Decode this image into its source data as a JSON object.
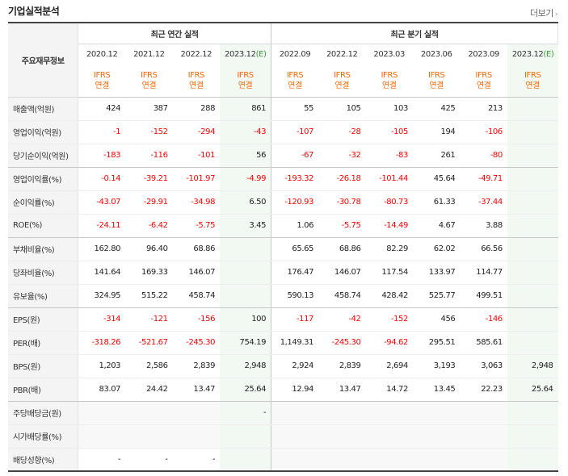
{
  "header": {
    "title": "기업실적분석",
    "more_label": "더보기",
    "more_chevron": "›"
  },
  "table": {
    "metric_header": "주요재무정보",
    "annual_group": "최근 연간 실적",
    "quarter_group": "최근 분기 실적",
    "periods": [
      {
        "label": "2020.12",
        "est": "",
        "acct1": "IFRS",
        "acct2": "연결"
      },
      {
        "label": "2021.12",
        "est": "",
        "acct1": "IFRS",
        "acct2": "연결"
      },
      {
        "label": "2022.12",
        "est": "",
        "acct1": "IFRS",
        "acct2": "연결"
      },
      {
        "label": "2023.12",
        "est": "(E)",
        "acct1": "IFRS",
        "acct2": "연결"
      },
      {
        "label": "2022.09",
        "est": "",
        "acct1": "IFRS",
        "acct2": "연결"
      },
      {
        "label": "2022.12",
        "est": "",
        "acct1": "IFRS",
        "acct2": "연결"
      },
      {
        "label": "2023.03",
        "est": "",
        "acct1": "IFRS",
        "acct2": "연결"
      },
      {
        "label": "2023.06",
        "est": "",
        "acct1": "IFRS",
        "acct2": "연결"
      },
      {
        "label": "2023.09",
        "est": "",
        "acct1": "IFRS",
        "acct2": "연결"
      },
      {
        "label": "2023.12",
        "est": "(E)",
        "acct1": "IFRS",
        "acct2": "연결"
      }
    ],
    "rows": [
      {
        "name": "매출액(억원)",
        "values": [
          "424",
          "387",
          "288",
          "861",
          "55",
          "105",
          "103",
          "425",
          "213",
          ""
        ],
        "group_end": false
      },
      {
        "name": "영업이익(억원)",
        "values": [
          "-1",
          "-152",
          "-294",
          "-43",
          "-107",
          "-28",
          "-105",
          "194",
          "-106",
          ""
        ],
        "group_end": false
      },
      {
        "name": "당기순이익(억원)",
        "values": [
          "-183",
          "-116",
          "-101",
          "56",
          "-67",
          "-32",
          "-83",
          "261",
          "-80",
          ""
        ],
        "group_end": true
      },
      {
        "name": "영업이익률(%)",
        "values": [
          "-0.14",
          "-39.21",
          "-101.97",
          "-4.99",
          "-193.32",
          "-26.18",
          "-101.44",
          "45.64",
          "-49.71",
          ""
        ],
        "group_end": false
      },
      {
        "name": "순이익률(%)",
        "values": [
          "-43.07",
          "-29.91",
          "-34.98",
          "6.50",
          "-120.93",
          "-30.78",
          "-80.73",
          "61.33",
          "-37.44",
          ""
        ],
        "group_end": false
      },
      {
        "name": "ROE(%)",
        "values": [
          "-24.11",
          "-6.42",
          "-5.75",
          "3.45",
          "1.06",
          "-5.75",
          "-14.49",
          "4.67",
          "3.88",
          ""
        ],
        "group_end": true
      },
      {
        "name": "부채비율(%)",
        "values": [
          "162.80",
          "96.40",
          "68.86",
          "",
          "65.65",
          "68.86",
          "82.29",
          "62.02",
          "66.56",
          ""
        ],
        "group_end": false
      },
      {
        "name": "당좌비율(%)",
        "values": [
          "141.64",
          "169.33",
          "146.07",
          "",
          "176.47",
          "146.07",
          "117.54",
          "133.97",
          "114.77",
          ""
        ],
        "group_end": false
      },
      {
        "name": "유보율(%)",
        "values": [
          "324.95",
          "515.22",
          "458.74",
          "",
          "590.13",
          "458.74",
          "428.42",
          "525.77",
          "499.51",
          ""
        ],
        "group_end": true
      },
      {
        "name": "EPS(원)",
        "values": [
          "-314",
          "-121",
          "-156",
          "100",
          "-117",
          "-42",
          "-152",
          "456",
          "-146",
          ""
        ],
        "group_end": false
      },
      {
        "name": "PER(배)",
        "values": [
          "-318.26",
          "-521.67",
          "-245.30",
          "754.19",
          "1,149.31",
          "-245.30",
          "-94.62",
          "295.51",
          "585.61",
          ""
        ],
        "group_end": false
      },
      {
        "name": "BPS(원)",
        "values": [
          "1,203",
          "2,586",
          "2,839",
          "2,948",
          "2,924",
          "2,839",
          "2,694",
          "3,193",
          "3,063",
          "2,948"
        ],
        "group_end": false
      },
      {
        "name": "PBR(배)",
        "values": [
          "83.07",
          "24.42",
          "13.47",
          "25.64",
          "12.94",
          "13.47",
          "14.72",
          "13.45",
          "22.23",
          "25.64"
        ],
        "group_end": true
      },
      {
        "name": "주당배당금(원)",
        "values": [
          "",
          "",
          "",
          "-",
          "",
          "",
          "",
          "",
          "",
          ""
        ],
        "group_end": false
      },
      {
        "name": "시가배당률(%)",
        "values": [
          "",
          "",
          "",
          "",
          "",
          "",
          "",
          "",
          "",
          ""
        ],
        "group_end": false
      },
      {
        "name": "배당성향(%)",
        "values": [
          "-",
          "-",
          "-",
          "",
          "",
          "",
          "",
          "",
          "",
          ""
        ],
        "group_end": false
      }
    ]
  },
  "colors": {
    "negative": "#ff0000",
    "accounting_label": "#ff6600",
    "estimate_tag": "#3a9a3a",
    "estimate_bg": "#f2f9f2"
  }
}
